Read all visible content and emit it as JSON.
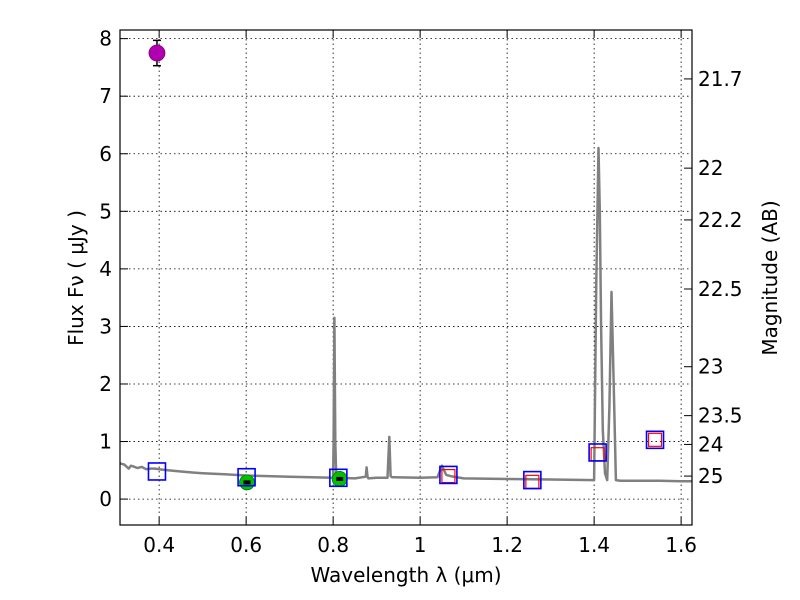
{
  "chart_data": {
    "type": "scatter",
    "xlabel": "Wavelength  λ (μm)",
    "ylabel_left": "Flux  Fν  ( μJy )",
    "ylabel_right": "Magnitude (AB)",
    "xlim": [
      0.31,
      1.625
    ],
    "ylim": [
      -0.45,
      8.15
    ],
    "xticks": [
      0.4,
      0.6,
      0.8,
      1.0,
      1.2,
      1.4,
      1.6
    ],
    "xtick_labels": [
      "0.4",
      "0.6",
      "0.8",
      "1",
      "1.2",
      "1.4",
      "1.6"
    ],
    "yticks": [
      0,
      1,
      2,
      3,
      4,
      5,
      6,
      7,
      8
    ],
    "ytick_labels": [
      "0",
      "1",
      "2",
      "3",
      "4",
      "5",
      "6",
      "7",
      "8"
    ],
    "right_ticks": [
      {
        "label": "21.7",
        "flux": 7.3
      },
      {
        "label": "22",
        "flux": 5.75
      },
      {
        "label": "22.2",
        "flux": 4.85
      },
      {
        "label": "22.5",
        "flux": 3.65
      },
      {
        "label": "23",
        "flux": 2.3
      },
      {
        "label": "23.5",
        "flux": 1.45
      },
      {
        "label": "24",
        "flux": 0.95
      },
      {
        "label": "25",
        "flux": 0.4
      }
    ],
    "grid": true,
    "colors": {
      "sed": "#808080",
      "model": "#0000ff",
      "observed": "#ff0000",
      "magenta": "#b000b0",
      "green": "#00c000"
    },
    "sed_model": {
      "x": [
        0.31,
        0.32,
        0.33,
        0.335,
        0.34,
        0.35,
        0.36,
        0.37,
        0.38,
        0.39,
        0.4,
        0.42,
        0.45,
        0.48,
        0.5,
        0.55,
        0.6,
        0.65,
        0.7,
        0.75,
        0.8,
        0.801,
        0.803,
        0.805,
        0.807,
        0.81,
        0.85,
        0.875,
        0.877,
        0.879,
        0.881,
        0.9,
        0.925,
        0.929,
        0.932,
        0.935,
        0.94,
        1.0,
        1.04,
        1.05,
        1.06,
        1.07,
        1.1,
        1.2,
        1.3,
        1.4,
        1.405,
        1.41,
        1.413,
        1.416,
        1.42,
        1.425,
        1.43,
        1.435,
        1.44,
        1.445,
        1.45,
        1.46,
        1.5,
        1.55,
        1.6,
        1.625
      ],
      "y": [
        0.62,
        0.6,
        0.53,
        0.58,
        0.57,
        0.54,
        0.56,
        0.52,
        0.53,
        0.53,
        0.52,
        0.5,
        0.48,
        0.46,
        0.45,
        0.43,
        0.41,
        0.4,
        0.39,
        0.38,
        0.37,
        1.0,
        3.15,
        1.0,
        0.4,
        0.37,
        0.36,
        0.39,
        0.55,
        0.39,
        0.36,
        0.37,
        0.37,
        1.08,
        0.4,
        0.38,
        0.38,
        0.37,
        0.38,
        0.58,
        0.42,
        0.4,
        0.36,
        0.35,
        0.34,
        0.33,
        3.8,
        6.1,
        5.0,
        3.0,
        1.2,
        0.45,
        0.33,
        1.6,
        3.6,
        2.0,
        0.33,
        0.32,
        0.32,
        0.32,
        0.31,
        0.31
      ]
    },
    "model_photometry": [
      {
        "x": 0.395,
        "y": 0.48
      },
      {
        "x": 0.601,
        "y": 0.38
      },
      {
        "x": 0.812,
        "y": 0.37
      },
      {
        "x": 1.065,
        "y": 0.42
      },
      {
        "x": 1.258,
        "y": 0.33
      },
      {
        "x": 1.408,
        "y": 0.81
      },
      {
        "x": 1.54,
        "y": 1.03
      }
    ],
    "observed_photometry": [
      {
        "x": 1.065,
        "y": 0.4
      },
      {
        "x": 1.258,
        "y": 0.3
      },
      {
        "x": 1.408,
        "y": 0.78
      },
      {
        "x": 1.54,
        "y": 1.03
      }
    ],
    "magenta_point": {
      "x": 0.395,
      "y": 7.75,
      "err": 0.22
    },
    "green_points": [
      {
        "x": 0.602,
        "y": 0.29
      },
      {
        "x": 0.815,
        "y": 0.35
      }
    ]
  }
}
